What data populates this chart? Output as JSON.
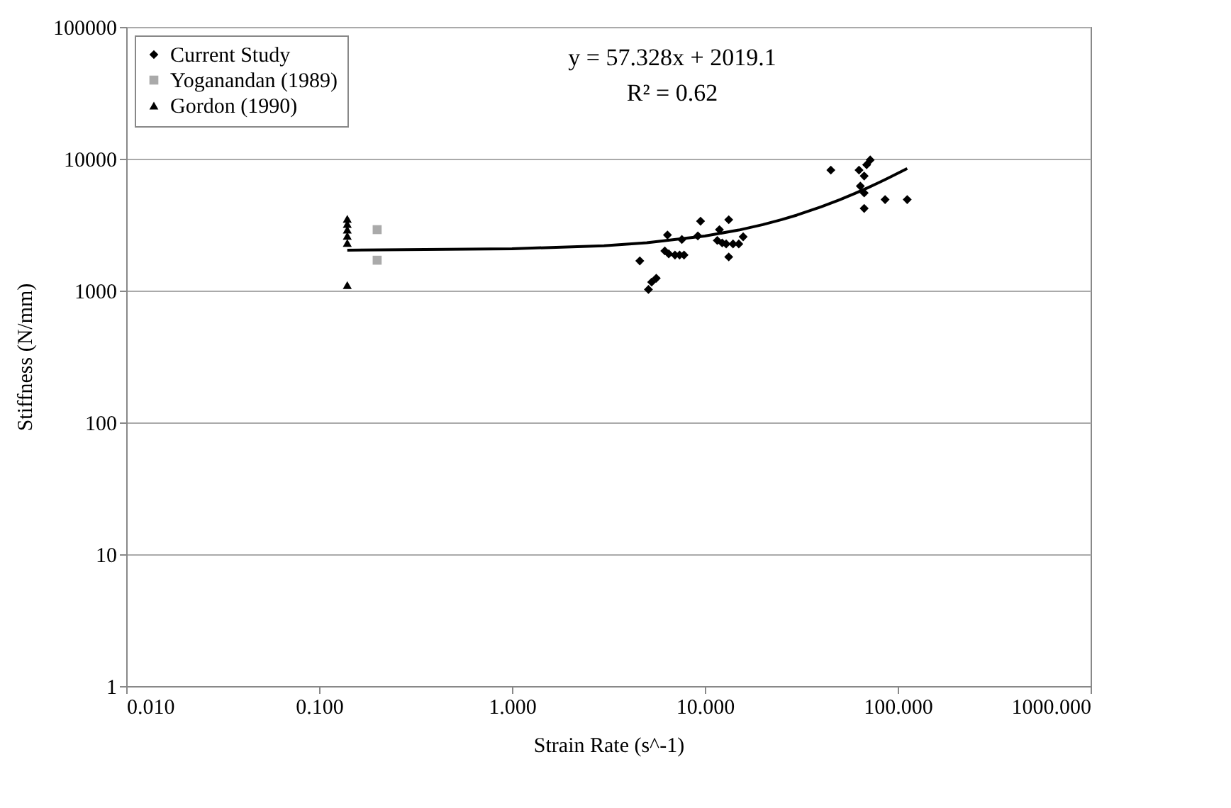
{
  "chart_data": {
    "type": "scatter",
    "xlabel": "Strain Rate (s^-1)",
    "ylabel": "Stiffness (N/mm)",
    "log": "xy",
    "grid": "y",
    "legend": "top left",
    "xlim": [
      0.01,
      1000
    ],
    "ylim": [
      1,
      100000
    ],
    "xticks": [
      {
        "value": 0.01,
        "label": "0.010"
      },
      {
        "value": 0.1,
        "label": "0.100"
      },
      {
        "value": 1,
        "label": "1.000"
      },
      {
        "value": 10,
        "label": "10.000"
      },
      {
        "value": 100,
        "label": "100.000"
      },
      {
        "value": 1000,
        "label": "1000.000"
      }
    ],
    "yticks": [
      1,
      10,
      100,
      1000,
      10000,
      100000
    ],
    "annotations": [
      "y = 57.328x + 2019.1",
      "R² = 0.62"
    ],
    "series": [
      {
        "name": "Current Study",
        "color": "#000000",
        "marker": "diamond",
        "x": [
          4.6,
          5.1,
          5.3,
          5.6,
          6.4,
          6.2,
          6.5,
          7.0,
          7.4,
          7.8,
          7.6,
          9.5,
          9.2,
          11.9,
          11.6,
          12.3,
          13.3,
          13.3,
          12.9,
          14.0,
          15.0,
          15.8,
          45,
          63,
          69,
          72,
          67,
          64,
          67,
          67,
          86,
          112
        ],
        "values": [
          1680,
          1020,
          1160,
          1240,
          2640,
          2000,
          1900,
          1860,
          1860,
          1860,
          2440,
          3360,
          2600,
          2900,
          2400,
          2300,
          3450,
          1800,
          2260,
          2260,
          2260,
          2560,
          8200,
          8200,
          9000,
          9800,
          7400,
          6200,
          5500,
          4200,
          4900,
          4900
        ]
      },
      {
        "name": "Yoganandan (1989)",
        "color": "#aaaaaa",
        "marker": "square",
        "x": [
          0.2,
          0.2
        ],
        "values": [
          2900,
          1700
        ]
      },
      {
        "name": "Gordon (1990)",
        "color": "#000000",
        "marker": "triangle",
        "x": [
          0.14,
          0.14,
          0.14,
          0.14,
          0.14,
          0.14
        ],
        "values": [
          3500,
          3200,
          2900,
          2600,
          2300,
          1100
        ]
      },
      {
        "type": "line",
        "color": "#000000",
        "marker": "none",
        "line_style": "solid",
        "x": [
          0.14,
          1,
          3,
          5,
          10,
          15,
          20,
          25,
          30,
          40,
          50,
          60,
          70,
          80,
          90,
          100,
          112
        ],
        "values": [
          2027,
          2076,
          2191,
          2306,
          2593,
          2879,
          3166,
          3452,
          3739,
          4312,
          4886,
          5459,
          6032,
          6605,
          7179,
          7752,
          8440
        ]
      }
    ]
  }
}
